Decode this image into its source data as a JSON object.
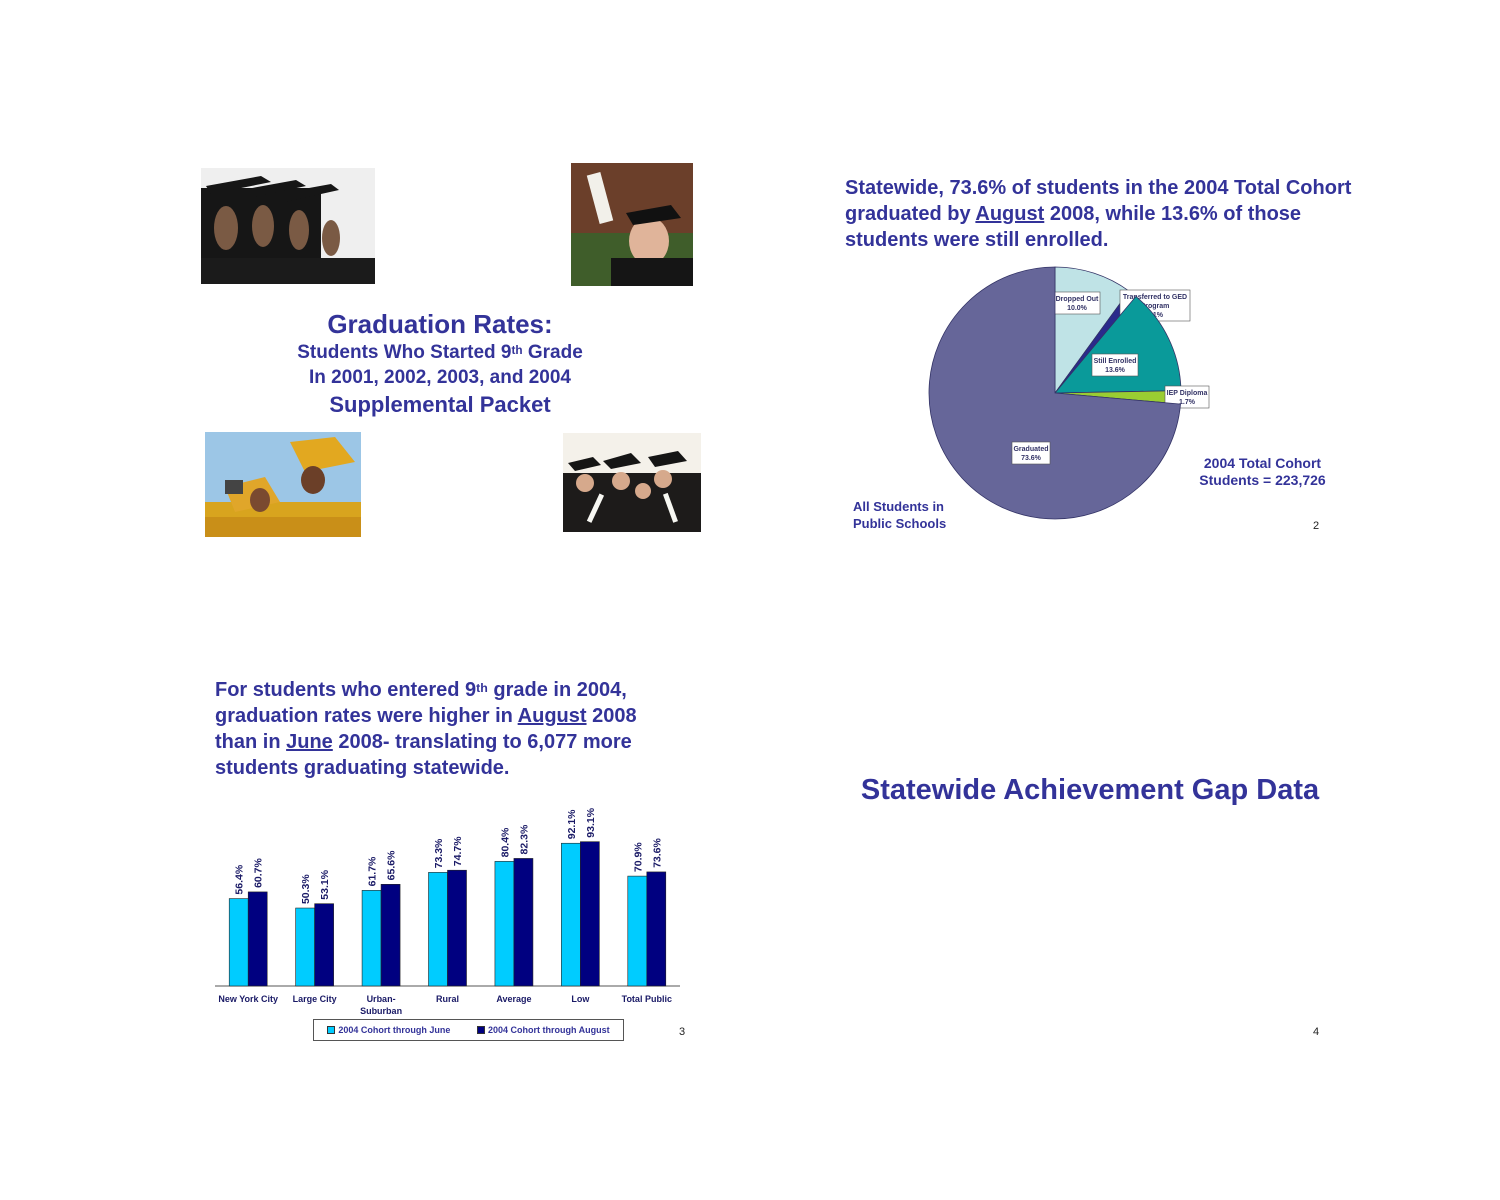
{
  "slide1": {
    "title": "Graduation Rates:",
    "line1_pre": "Students Who Started 9",
    "line1_sup": "th",
    "line1_post": " Grade",
    "line2": "In 2001, 2002, 2003, and 2004",
    "line3": "Supplemental Packet",
    "colors": {
      "title": "#333399"
    }
  },
  "slide2": {
    "heading_a": "Statewide",
    "heading_b": ", 73.6% of students in the 2004 Total Cohort graduated by ",
    "heading_u": "August",
    "heading_c": " 2008, while 13.6% of those students were still enrolled.",
    "note_cohort": "2004 Total Cohort\nStudents = 223,726",
    "note_students": "All Students in\nPublic Schools",
    "page_number": "2"
  },
  "slide3": {
    "heading_a": "For students who entered 9",
    "heading_sup": "th",
    "heading_b": " grade in 2004, graduation rates were higher in ",
    "heading_u1": "August",
    "heading_c": " 2008 than in ",
    "heading_u2": "June",
    "heading_d": " 2008- translating to 6,077 more students graduating statewide.",
    "page_number": "3"
  },
  "slide4": {
    "title": "Statewide Achievement Gap Data",
    "page_number": "4"
  },
  "chart_data": [
    {
      "type": "pie",
      "slices": [
        {
          "label": "Dropped Out",
          "value": 10.0,
          "display": "10.0%",
          "color": "#bfe3e6"
        },
        {
          "label": "Transferred to GED Program",
          "value": 1.1,
          "display": "1.1%",
          "color": "#2a2a8c"
        },
        {
          "label": "Still Enrolled",
          "value": 13.6,
          "display": "13.6%",
          "color": "#0a9a9a"
        },
        {
          "label": "IEP Diploma",
          "value": 1.7,
          "display": "1.7%",
          "color": "#9acd32"
        },
        {
          "label": "Graduated",
          "value": 73.6,
          "display": "73.6%",
          "color": "#666699"
        }
      ]
    },
    {
      "type": "bar",
      "categories": [
        "New York City",
        "Large City",
        "Urban-\nSuburban",
        "Rural",
        "Average",
        "Low",
        "Total Public"
      ],
      "series": [
        {
          "name": "2004 Cohort through June",
          "values": [
            56.4,
            50.3,
            61.7,
            73.3,
            80.4,
            92.1,
            70.9
          ],
          "color": "#00ccff"
        },
        {
          "name": "2004 Cohort through August",
          "values": [
            60.7,
            53.1,
            65.6,
            74.7,
            82.3,
            93.1,
            73.6
          ],
          "color": "#000080"
        }
      ],
      "ylim": [
        0,
        100
      ],
      "value_suffix": "%",
      "legend_position": "bottom"
    }
  ]
}
